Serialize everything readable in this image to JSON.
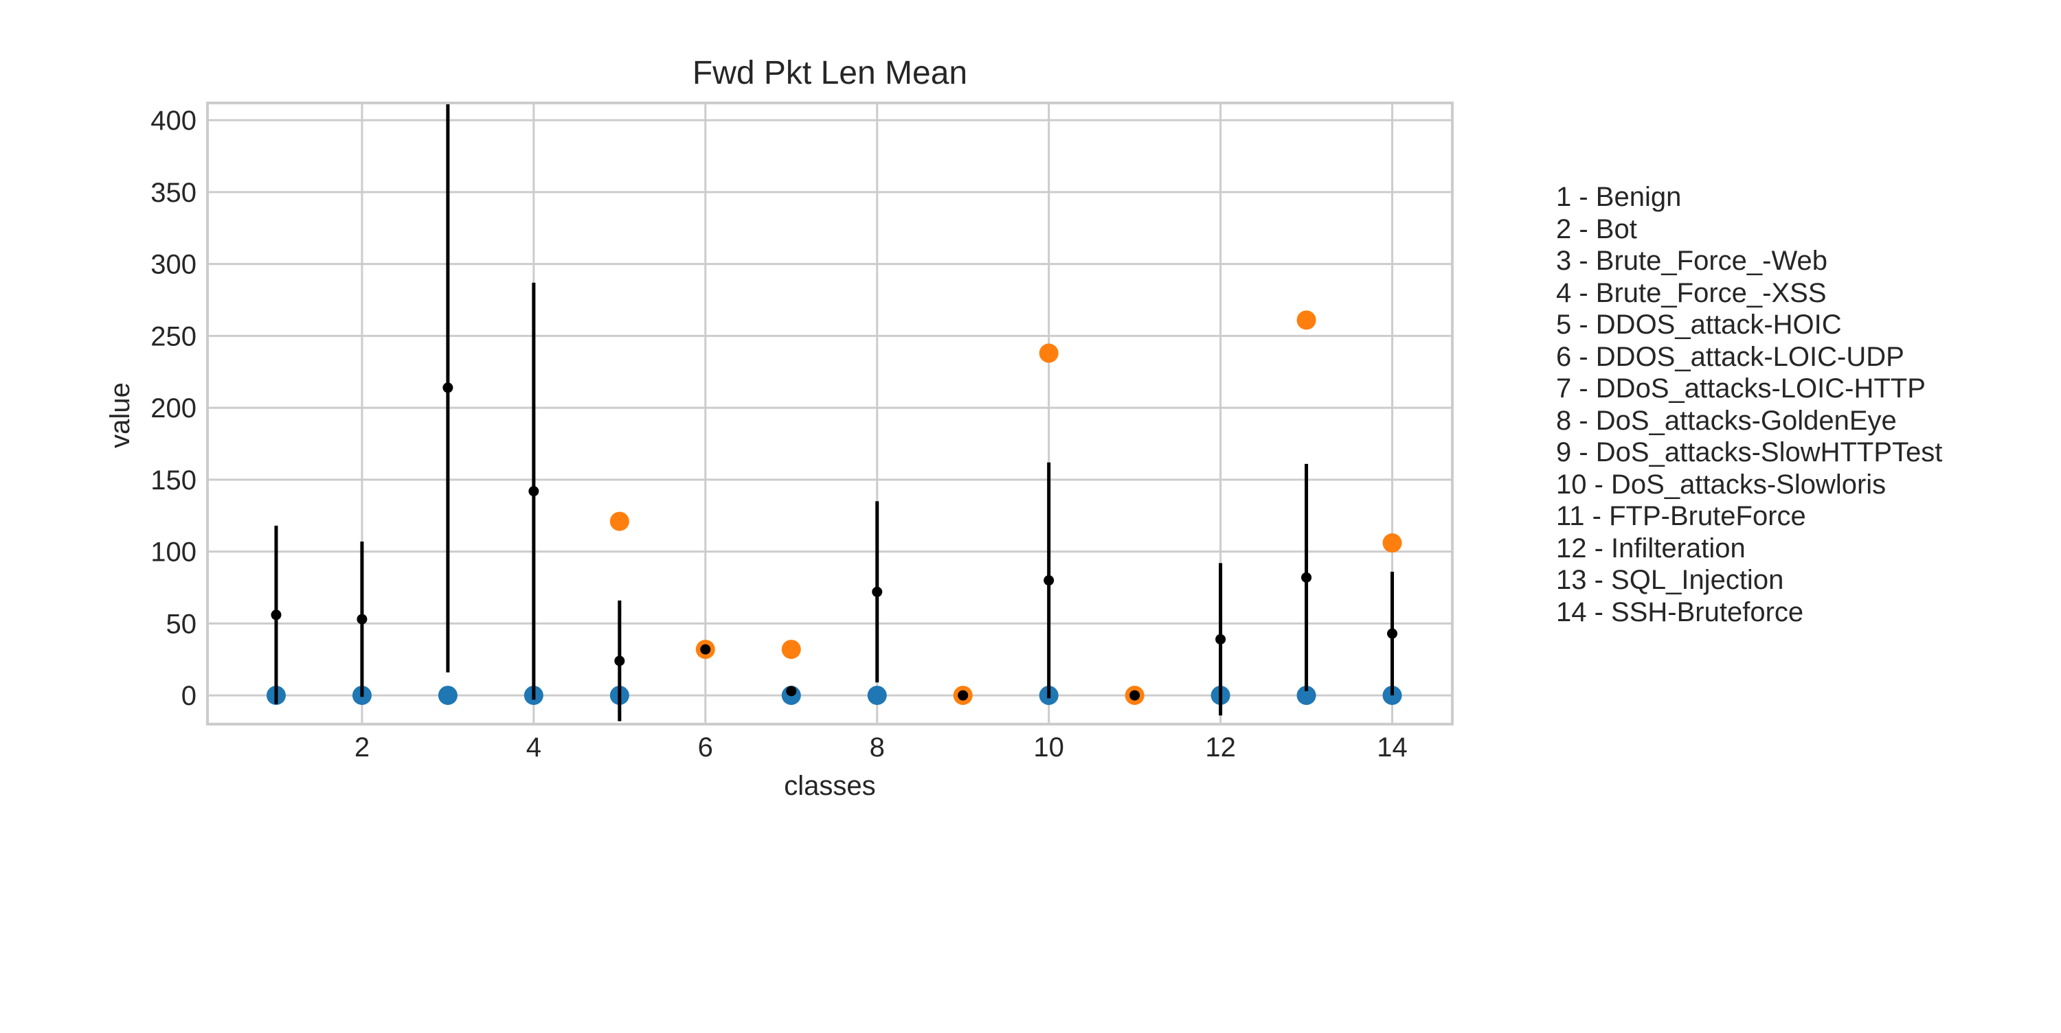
{
  "chart_data": {
    "type": "scatter",
    "title": "Fwd Pkt Len Mean",
    "xlabel": "classes",
    "ylabel": "value",
    "xlim": [
      0.2,
      14.7
    ],
    "ylim": [
      -20,
      412
    ],
    "xticks": [
      2,
      4,
      6,
      8,
      10,
      12,
      14
    ],
    "yticks": [
      0,
      50,
      100,
      150,
      200,
      250,
      300,
      350,
      400
    ],
    "grid": true,
    "colors": {
      "blue": "#1f77b4",
      "orange": "#ff7f0e",
      "mean": "#000000",
      "grid": "#cccccc"
    },
    "x": [
      1,
      2,
      3,
      4,
      5,
      6,
      7,
      8,
      9,
      10,
      11,
      12,
      13,
      14
    ],
    "series": [
      {
        "color": "#1f77b4",
        "values": [
          0,
          0,
          0,
          0,
          0,
          null,
          0,
          0,
          null,
          0,
          null,
          0,
          0,
          0
        ]
      },
      {
        "color": "#ff7f0e",
        "values": [
          null,
          null,
          null,
          null,
          121,
          32,
          32,
          null,
          0,
          238,
          0,
          null,
          261,
          106
        ]
      },
      {
        "color": "#000000",
        "values": [
          56,
          53,
          214,
          142,
          24,
          32,
          3,
          72,
          0,
          80,
          0,
          39,
          82,
          43
        ],
        "error": [
          62,
          54,
          198,
          145,
          42,
          0,
          0,
          63,
          0,
          82,
          0,
          53,
          79,
          43
        ]
      }
    ],
    "legend_position": "right",
    "legend": [
      "1 - Benign",
      "2 - Bot",
      "3 - Brute_Force_-Web",
      "4 - Brute_Force_-XSS",
      "5 - DDOS_attack-HOIC",
      "6 - DDOS_attack-LOIC-UDP",
      "7 - DDoS_attacks-LOIC-HTTP",
      "8 - DoS_attacks-GoldenEye",
      "9 - DoS_attacks-SlowHTTPTest",
      "10 - DoS_attacks-Slowloris",
      "11 - FTP-BruteForce",
      "12 - Infilteration",
      "13 - SQL_Injection",
      "14 - SSH-Bruteforce"
    ]
  }
}
